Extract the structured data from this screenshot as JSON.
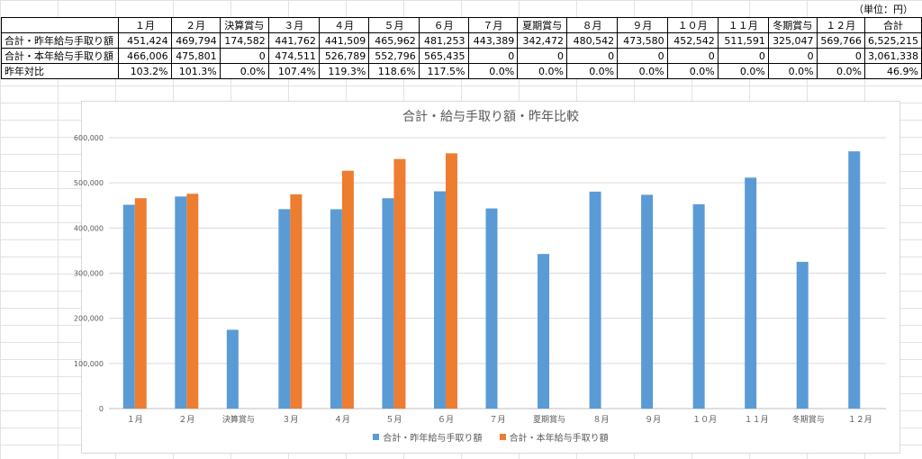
{
  "sheet": {
    "unit_label": "（単位：円）",
    "headers": [
      "",
      "１月",
      "２月",
      "決算賞与",
      "３月",
      "４月",
      "５月",
      "６月",
      "７月",
      "夏期賞与",
      "８月",
      "９月",
      "１０月",
      "１１月",
      "冬期賞与",
      "１２月",
      "合計"
    ],
    "rows": [
      {
        "label": "合計・昨年給与手取り額",
        "cells": [
          "451,424",
          "469,794",
          "174,582",
          "441,762",
          "441,509",
          "465,962",
          "481,253",
          "443,389",
          "342,472",
          "480,542",
          "473,580",
          "452,542",
          "511,591",
          "325,047",
          "569,766",
          "6,525,215"
        ]
      },
      {
        "label": "合計・本年給与手取り額",
        "cells": [
          "466,006",
          "475,801",
          "0",
          "474,511",
          "526,789",
          "552,796",
          "565,435",
          "0",
          "0",
          "0",
          "0",
          "0",
          "0",
          "0",
          "0",
          "3,061,338"
        ]
      },
      {
        "label": "昨年対比",
        "cells": [
          "103.2%",
          "101.3%",
          "0.0%",
          "107.4%",
          "119.3%",
          "118.6%",
          "117.5%",
          "0.0%",
          "0.0%",
          "0.0%",
          "0.0%",
          "0.0%",
          "0.0%",
          "0.0%",
          "0.0%",
          "46.9%"
        ]
      }
    ]
  },
  "chart_data": {
    "type": "bar",
    "title": "合計・給与手取り額・昨年比較",
    "categories": [
      "１月",
      "２月",
      "決算賞与",
      "３月",
      "４月",
      "５月",
      "６月",
      "７月",
      "夏期賞与",
      "８月",
      "９月",
      "１０月",
      "１１月",
      "冬期賞与",
      "１２月"
    ],
    "series": [
      {
        "name": "合計・昨年給与手取り額",
        "color": "#5b9bd5",
        "values": [
          451424,
          469794,
          174582,
          441762,
          441509,
          465962,
          481253,
          443389,
          342472,
          480542,
          473580,
          452542,
          511591,
          325047,
          569766
        ]
      },
      {
        "name": "合計・本年給与手取り額",
        "color": "#ed7d31",
        "values": [
          466006,
          475801,
          0,
          474511,
          526789,
          552796,
          565435,
          0,
          0,
          0,
          0,
          0,
          0,
          0,
          0
        ]
      }
    ],
    "ylim": [
      0,
      600000
    ],
    "yticks": [
      "0",
      "100,000",
      "200,000",
      "300,000",
      "400,000",
      "500,000",
      "600,000"
    ],
    "grid": true,
    "legend_position": "bottom"
  }
}
